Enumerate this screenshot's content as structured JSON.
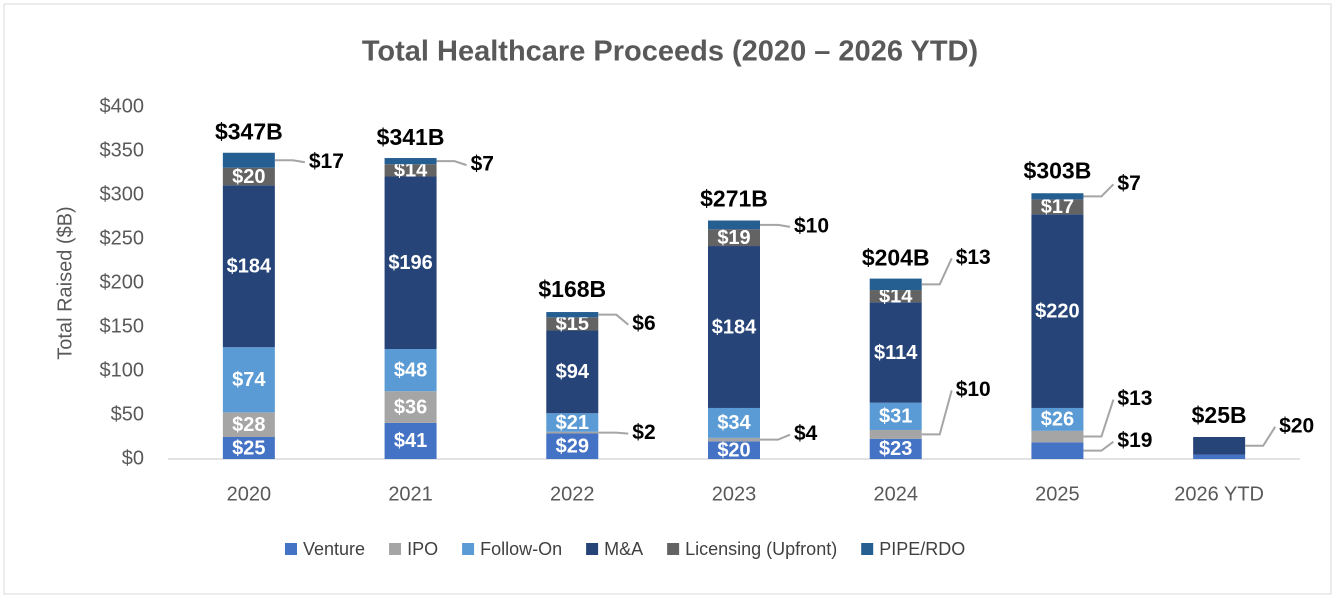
{
  "chart_data": {
    "type": "stacked_bar",
    "title": "Total Healthcare Proceeds (2020 – 2026 YTD)",
    "y_label": "Total Raised ($B)",
    "categories": [
      "2020",
      "2021",
      "2022",
      "2023",
      "2024",
      "2025",
      "2026 YTD"
    ],
    "ylim": [
      0,
      400
    ],
    "yticks": [
      {
        "value": 0,
        "label": "$0"
      },
      {
        "value": 50,
        "label": "$50"
      },
      {
        "value": 100,
        "label": "$100"
      },
      {
        "value": 150,
        "label": "$150"
      },
      {
        "value": 200,
        "label": "$200"
      },
      {
        "value": 250,
        "label": "$250"
      },
      {
        "value": 300,
        "label": "$300"
      },
      {
        "value": 350,
        "label": "$350"
      },
      {
        "value": 400,
        "label": "$400"
      }
    ],
    "series": [
      {
        "name": "Venture",
        "color": "#4472c4",
        "values": [
          25,
          41,
          29,
          20,
          23,
          19,
          5
        ],
        "value_labels": [
          "$25",
          "$41",
          "$29",
          "$20",
          "$23",
          "$19",
          null
        ]
      },
      {
        "name": "IPO",
        "color": "#a5a5a5",
        "values": [
          28,
          36,
          2,
          4,
          10,
          13,
          0
        ],
        "value_labels": [
          "$28",
          "$36",
          "$2",
          "$4",
          "$10",
          "$13",
          null
        ]
      },
      {
        "name": "Follow-On",
        "color": "#5b9bd5",
        "values": [
          74,
          48,
          21,
          34,
          31,
          26,
          0
        ],
        "value_labels": [
          "$74",
          "$48",
          "$21",
          "$34",
          "$31",
          "$26",
          null
        ]
      },
      {
        "name": "M&A",
        "color": "#264478",
        "values": [
          184,
          196,
          94,
          184,
          114,
          220,
          20
        ],
        "value_labels": [
          "$184",
          "$196",
          "$94",
          "$184",
          "$114",
          "$220",
          "$20"
        ]
      },
      {
        "name": "Licensing (Upfront)",
        "color": "#636363",
        "values": [
          20,
          14,
          15,
          19,
          14,
          17,
          0
        ],
        "value_labels": [
          "$20",
          "$14",
          "$15",
          "$19",
          "$14",
          "$17",
          null
        ]
      },
      {
        "name": "PIPE/RDO",
        "color": "#255e91",
        "values": [
          17,
          7,
          6,
          10,
          13,
          7,
          0
        ],
        "value_labels": [
          "$17",
          "$7",
          "$6",
          "$10",
          "$13",
          "$7",
          null
        ]
      }
    ],
    "totals": {
      "values": [
        347,
        341,
        168,
        271,
        204,
        303,
        25
      ],
      "value_labels": [
        "$347B",
        "$341B",
        "$168B",
        "$271B",
        "$204B",
        "$303B",
        "$25B"
      ]
    },
    "legend": "bottom"
  }
}
